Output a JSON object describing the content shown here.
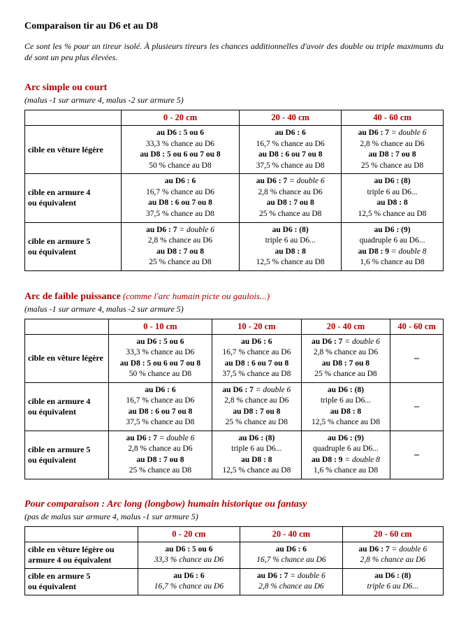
{
  "pageTitle": "Comparaison tir au D6 et au D8",
  "intro": "Ce sont les % pour un tireur isolé. À plusieurs tireurs les chances additionnelles d'avoir des double ou triple maximums du dé sont un peu plus élevées.",
  "section1": {
    "title": "Arc simple ou court",
    "malus": "(malus -1 sur armure 4, malus -2 sur armure 5)",
    "cols": [
      "0 - 20 cm",
      "20 - 40 cm",
      "40 - 60 cm"
    ],
    "rows": [
      {
        "label": "cible en vêture légère",
        "cells": [
          {
            "d6b": "au D6 : 5 ou 6",
            "d6p": "33,3 % chance au D6",
            "d8b": "au D8 : 5 ou 6 ou 7 ou 8",
            "d8p": "50 % chance au D8"
          },
          {
            "d6b": "au D6 : 6",
            "d6p": "16,7 % chance au D6",
            "d8b": "au D8 : 6 ou 7 ou 8",
            "d8p": "37,5 % chance au D8"
          },
          {
            "d6b": "au D6 : 7",
            "d6i": "= double 6",
            "d6p": "2,8 % chance au D6",
            "d8b": "au D8 : 7 ou 8",
            "d8p": "25 % chance au D8"
          }
        ]
      },
      {
        "label": "cible en armure 4\nou équivalent",
        "cells": [
          {
            "d6b": "au D6 : 6",
            "d6p": "16,7 % chance au D6",
            "d8b": "au D8 : 6 ou 7 ou 8",
            "d8p": "37,5 % chance au D8"
          },
          {
            "d6b": "au D6 : 7",
            "d6i": "= double 6",
            "d6p": "2,8 % chance au D6",
            "d8b": "au D8 : 7 ou 8",
            "d8p": "25 % chance au D8"
          },
          {
            "d6b": "au D6 : (8)",
            "d6p": "triple 6 au D6...",
            "d8b": "au D8 : 8",
            "d8p": "12,5 % chance au D8"
          }
        ]
      },
      {
        "label": "cible en armure 5\nou équivalent",
        "cells": [
          {
            "d6b": "au D6 : 7",
            "d6i": "= double 6",
            "d6p": "2,8 % chance au D6",
            "d8b": "au D8 : 7 ou 8",
            "d8p": "25 % chance au D8"
          },
          {
            "d6b": "au D6 : (8)",
            "d6p": "triple 6 au D6...",
            "d8b": "au D8 : 8",
            "d8p": "12,5 % chance au D8"
          },
          {
            "d6b": "au D6 : (9)",
            "d6p": "quadruple 6 au D6...",
            "d8b": "au D8 : 9",
            "d8i": "= double 8",
            "d8p": "1,6 % chance au D8"
          }
        ]
      }
    ]
  },
  "section2": {
    "title": "Arc de faible puissance",
    "titleExtra": "(comme l'arc humain picte ou gaulois...)",
    "malus": "(malus -1 sur armure 4, malus -2 sur armure 5)",
    "cols": [
      "0 - 10 cm",
      "10 - 20 cm",
      "20 - 40 cm",
      "40 - 60 cm"
    ],
    "rows": [
      {
        "label": "cible en vêture légère",
        "cells": [
          {
            "d6b": "au D6 : 5 ou 6",
            "d6p": "33,3 % chance au D6",
            "d8b": "au D8 : 5 ou 6 ou 7 ou 8",
            "d8p": "50 % chance au D8"
          },
          {
            "d6b": "au D6 : 6",
            "d6p": "16,7 % chance au D6",
            "d8b": "au D8 : 6 ou 7 ou 8",
            "d8p": "37,5 % chance au D8"
          },
          {
            "d6b": "au D6 : 7",
            "d6i": "= double 6",
            "d6p": "2,8 % chance au D6",
            "d8b": "au D8 : 7 ou 8",
            "d8p": "25 % chance au D8"
          },
          {
            "dash": true
          }
        ]
      },
      {
        "label": "cible en armure 4\nou équivalent",
        "cells": [
          {
            "d6b": "au D6 : 6",
            "d6p": "16,7 % chance au D6",
            "d8b": "au D8 : 6 ou 7 ou 8",
            "d8p": "37,5 % chance au D8"
          },
          {
            "d6b": "au D6 : 7",
            "d6i": "= double 6",
            "d6p": "2,8 % chance au D6",
            "d8b": "au D8 : 7 ou 8",
            "d8p": "25 % chance au D8"
          },
          {
            "d6b": "au D6 : (8)",
            "d6p": "triple 6 au D6...",
            "d8b": "au D8 : 8",
            "d8p": "12,5 % chance au D8"
          },
          {
            "dash": true
          }
        ]
      },
      {
        "label": "cible en armure 5\nou équivalent",
        "cells": [
          {
            "d6b": "au D6 : 7",
            "d6i": "= double 6",
            "d6p": "2,8 % chance au D6",
            "d8b": "au D8 : 7 ou 8",
            "d8p": "25 % chance au D8"
          },
          {
            "d6b": "au D6 : (8)",
            "d6p": "triple 6 au D6...",
            "d8b": "au D8 : 8",
            "d8p": "12,5 % chance au D8"
          },
          {
            "d6b": "au D6 : (9)",
            "d6p": "quadruple 6 au D6...",
            "d8b": "au D8 : 9",
            "d8i": "= double 8",
            "d8p": "1,6 % chance au D8"
          },
          {
            "dash": true
          }
        ]
      }
    ]
  },
  "section3": {
    "title": "Pour comparaison : Arc long (longbow) humain historique ou fantasy",
    "malus": "(pas de malus sur armure 4, malus -1 sur armure 5)",
    "cols": [
      "0 - 20 cm",
      "20 - 40 cm",
      "20 - 60 cm"
    ],
    "rows": [
      {
        "label": "cible en vêture légère ou\narmure 4 ou équivalent",
        "cells": [
          {
            "d6b": "au D6 : 5 ou 6",
            "d6p": "33,3 % chance au D6",
            "d6pItal": true
          },
          {
            "d6b": "au D6 : 6",
            "d6p": "16,7 % chance au D6",
            "d6pItal": true
          },
          {
            "d6b": "au D6 : 7",
            "d6i": "= double 6",
            "d6p": "2,8 % chance au D6",
            "d6pItal": true
          }
        ]
      },
      {
        "label": "cible en armure 5\nou équivalent",
        "cells": [
          {
            "d6b": "au D6 : 6",
            "d6p": "16,7 % chance au D6",
            "d6pItal": true
          },
          {
            "d6b": "au D6 : 7",
            "d6i": "= double 6",
            "d6p": "2,8 % chance au D6",
            "d6pItal": true
          },
          {
            "d6b": "au D6 : (8)",
            "d6p": "triple 6 au D6...",
            "d6pItal": true
          }
        ]
      }
    ]
  }
}
